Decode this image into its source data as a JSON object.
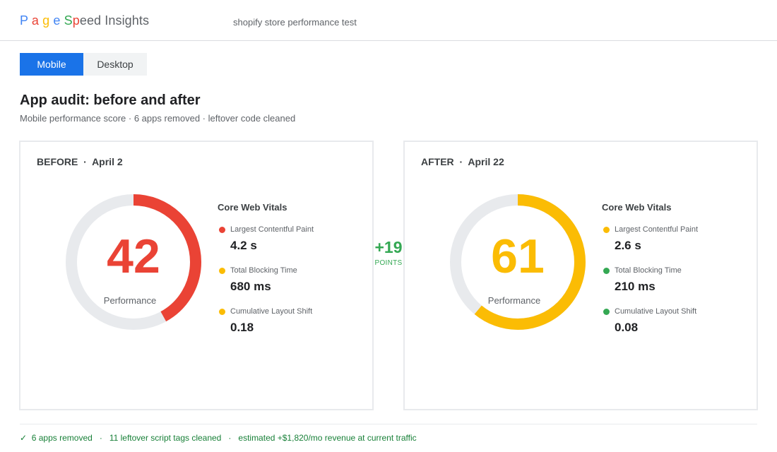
{
  "header": {
    "logo_letters": [
      {
        "char": "P",
        "color": "#4285f4"
      },
      {
        "char": "a",
        "color": "#ea4335"
      },
      {
        "char": "g",
        "color": "#fbbc04"
      },
      {
        "char": "e",
        "color": "#4285f4"
      },
      {
        "char": "S",
        "color": "#34a853"
      },
      {
        "char": "p",
        "color": "#ea4335"
      }
    ],
    "logo_rest": "eed Insights",
    "query": "shopify store performance test"
  },
  "tabs": {
    "mobile": "Mobile",
    "desktop": "Desktop",
    "active": "Mobile"
  },
  "page": {
    "title": "App audit: before and after",
    "subtitle": "Mobile performance score · 6 apps removed · leftover code cleaned"
  },
  "before": {
    "label": "BEFORE",
    "separator": "·",
    "date": "April 2",
    "score": "42",
    "score_fraction": 0.42,
    "score_color": "#ea4335",
    "perf_label": "Performance",
    "vitals_title": "Core Web Vitals",
    "metrics": [
      {
        "name": "Largest Contentful Paint",
        "value": "4.2 s",
        "color": "#ea4335"
      },
      {
        "name": "Total Blocking Time",
        "value": "680 ms",
        "color": "#fbbc04"
      },
      {
        "name": "Cumulative Layout Shift",
        "value": "0.18",
        "color": "#fbbc04"
      }
    ]
  },
  "after": {
    "label": "AFTER",
    "separator": "·",
    "date": "April 22",
    "score": "61",
    "score_fraction": 0.61,
    "score_color": "#fbbc04",
    "perf_label": "Performance",
    "vitals_title": "Core Web Vitals",
    "metrics": [
      {
        "name": "Largest Contentful Paint",
        "value": "2.6 s",
        "color": "#fbbc04"
      },
      {
        "name": "Total Blocking Time",
        "value": "210 ms",
        "color": "#34a853"
      },
      {
        "name": "Cumulative Layout Shift",
        "value": "0.08",
        "color": "#34a853"
      }
    ]
  },
  "delta": {
    "value": "+19",
    "label": "POINTS",
    "color": "#34a853"
  },
  "footer": {
    "check": "✓",
    "items": [
      "6 apps removed",
      "11 leftover script tags cleaned",
      "estimated +$1,820/mo revenue at current traffic"
    ],
    "separator": "·"
  },
  "colors": {
    "accent": "#1a73e8",
    "track": "#e8eaed",
    "good": "#34a853",
    "average": "#fbbc04",
    "poor": "#ea4335"
  }
}
